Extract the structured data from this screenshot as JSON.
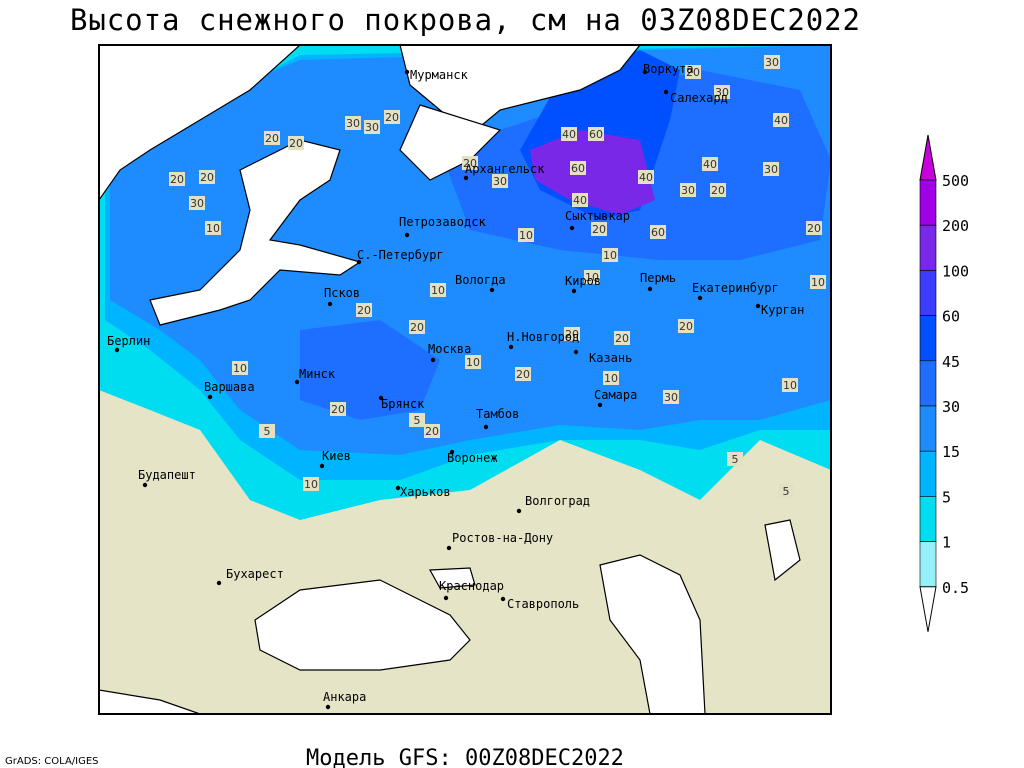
{
  "header": {
    "title": "Высота снежного покрова, см на 03Z08DEC2022"
  },
  "footer": {
    "model": "Модель GFS: 00Z08DEC2022",
    "credit": "GrADS: COLA/IGES"
  },
  "legend": {
    "levels": [
      500,
      200,
      100,
      60,
      45,
      30,
      15,
      5,
      1,
      0.5
    ],
    "colors": [
      "#c800dc",
      "#a000e6",
      "#7828e6",
      "#3c3cff",
      "#0050ff",
      "#1e6eff",
      "#1e8cff",
      "#00b4ff",
      "#00dcf0",
      "#96f0f8",
      "#ffffff"
    ]
  },
  "cities": [
    "Мурманск",
    "Воркута",
    "Салехард",
    "Архангельск",
    "Петрозаводск",
    "Сыктывкар",
    "С.-Петербург",
    "Вологда",
    "Киров",
    "Пермь",
    "Екатеринбург",
    "Псков",
    "Курган",
    "Берлин",
    "Н.Новгород",
    "Москва",
    "Казань",
    "Минск",
    "Варшава",
    "Самара",
    "Брянск",
    "Тамбов",
    "Киев",
    "Воронеж",
    "Будапешт",
    "Харьков",
    "Волгоград",
    "Ростов-на-Дону",
    "Бухарест",
    "Краснодар",
    "Ставрополь",
    "Анкара"
  ],
  "contour_labels": [
    30,
    20,
    30,
    40,
    40,
    60,
    30,
    30,
    20,
    20,
    20,
    20,
    30,
    60,
    40,
    30,
    40,
    30,
    20,
    40,
    20,
    20,
    30,
    10,
    60,
    20,
    10,
    20,
    10,
    10,
    10,
    10,
    20,
    20,
    20,
    20,
    20,
    10,
    10,
    20,
    10,
    10,
    20,
    30,
    5,
    5,
    5,
    10,
    5,
    20
  ]
}
